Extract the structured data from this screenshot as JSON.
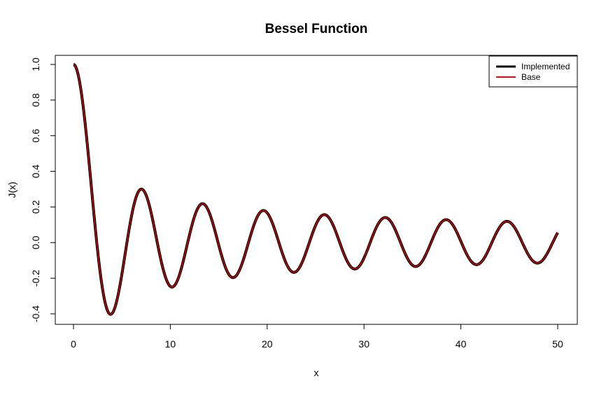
{
  "chart_data": {
    "type": "line",
    "title": "Bessel Function",
    "xlabel": "x",
    "ylabel": "J(x)",
    "xlim": [
      0,
      50
    ],
    "ylim": [
      -0.4,
      1.0
    ],
    "xticks": [
      0,
      10,
      20,
      30,
      40,
      50
    ],
    "yticks": [
      -0.4,
      -0.2,
      0.0,
      0.2,
      0.4,
      0.6,
      0.8,
      1.0
    ],
    "xtick_labels": [
      "0",
      "10",
      "20",
      "30",
      "40",
      "50"
    ],
    "ytick_labels": [
      "-0.4",
      "-0.2",
      "0.0",
      "0.2",
      "0.4",
      "0.6",
      "0.8",
      "1.0"
    ],
    "grid": false,
    "legend_position": "top-right",
    "function": "Bessel J0",
    "x_range": [
      0,
      50
    ],
    "series": [
      {
        "name": "Implemented",
        "color": "#000000"
      },
      {
        "name": "Base",
        "color": "#ff0000"
      }
    ]
  }
}
